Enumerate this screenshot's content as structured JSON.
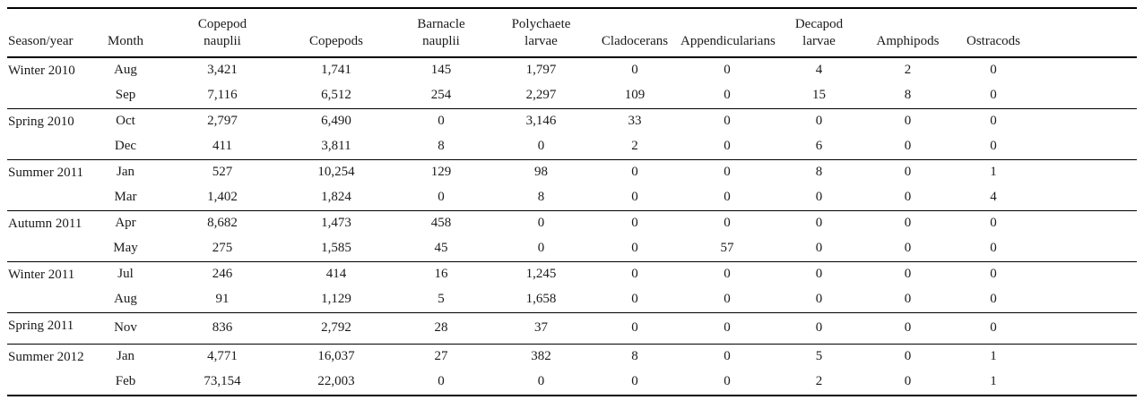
{
  "table": {
    "columns": [
      {
        "label": "Season/year"
      },
      {
        "label": "Month"
      },
      {
        "label": "Copepod\nnauplii"
      },
      {
        "label": "Copepods"
      },
      {
        "label": "Barnacle\nnauplii"
      },
      {
        "label": "Polychaete\nlarvae"
      },
      {
        "label": "Cladocerans"
      },
      {
        "label": "Appendicularians"
      },
      {
        "label": "Decapod\nlarvae"
      },
      {
        "label": "Amphipods"
      },
      {
        "label": "Ostracods"
      }
    ],
    "groups": [
      {
        "season": "Winter 2010",
        "rows": [
          {
            "month": "Aug",
            "values": [
              "3,421",
              "1,741",
              "145",
              "1,797",
              "0",
              "0",
              "4",
              "2",
              "0"
            ]
          },
          {
            "month": "Sep",
            "values": [
              "7,116",
              "6,512",
              "254",
              "2,297",
              "109",
              "0",
              "15",
              "8",
              "0"
            ]
          }
        ]
      },
      {
        "season": "Spring 2010",
        "rows": [
          {
            "month": "Oct",
            "values": [
              "2,797",
              "6,490",
              "0",
              "3,146",
              "33",
              "0",
              "0",
              "0",
              "0"
            ]
          },
          {
            "month": "Dec",
            "values": [
              "411",
              "3,811",
              "8",
              "0",
              "2",
              "0",
              "6",
              "0",
              "0"
            ]
          }
        ]
      },
      {
        "season": "Summer 2011",
        "rows": [
          {
            "month": "Jan",
            "values": [
              "527",
              "10,254",
              "129",
              "98",
              "0",
              "0",
              "8",
              "0",
              "1"
            ]
          },
          {
            "month": "Mar",
            "values": [
              "1,402",
              "1,824",
              "0",
              "8",
              "0",
              "0",
              "0",
              "0",
              "4"
            ]
          }
        ]
      },
      {
        "season": "Autumn 2011",
        "rows": [
          {
            "month": "Apr",
            "values": [
              "8,682",
              "1,473",
              "458",
              "0",
              "0",
              "0",
              "0",
              "0",
              "0"
            ]
          },
          {
            "month": "May",
            "values": [
              "275",
              "1,585",
              "45",
              "0",
              "0",
              "57",
              "0",
              "0",
              "0"
            ]
          }
        ]
      },
      {
        "season": "Winter 2011",
        "rows": [
          {
            "month": "Jul",
            "values": [
              "246",
              "414",
              "16",
              "1,245",
              "0",
              "0",
              "0",
              "0",
              "0"
            ]
          },
          {
            "month": "Aug",
            "values": [
              "91",
              "1,129",
              "5",
              "1,658",
              "0",
              "0",
              "0",
              "0",
              "0"
            ]
          }
        ]
      },
      {
        "season": "Spring 2011",
        "rows": [
          {
            "month": "Nov",
            "values": [
              "836",
              "2,792",
              "28",
              "37",
              "0",
              "0",
              "0",
              "0",
              "0"
            ]
          }
        ]
      },
      {
        "season": "Summer 2012",
        "rows": [
          {
            "month": "Jan",
            "values": [
              "4,771",
              "16,037",
              "27",
              "382",
              "8",
              "0",
              "5",
              "0",
              "1"
            ]
          },
          {
            "month": "Feb",
            "values": [
              "73,154",
              "22,003",
              "0",
              "0",
              "0",
              "0",
              "2",
              "0",
              "1"
            ]
          }
        ]
      }
    ]
  }
}
